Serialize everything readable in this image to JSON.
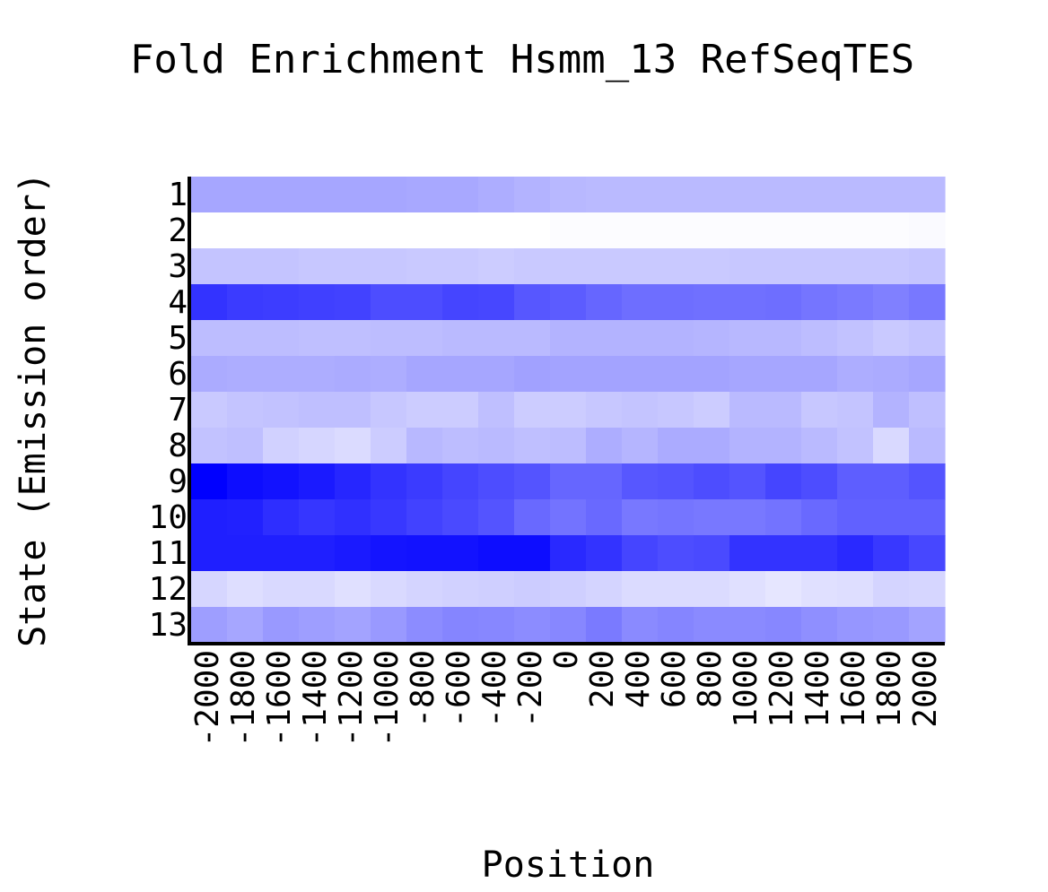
{
  "chart_data": {
    "type": "heatmap",
    "title": "Fold Enrichment Hsmm_13 RefSeqTES",
    "xlabel": "Position",
    "ylabel": "State (Emission order)",
    "x_categories": [
      "-2000",
      "-1800",
      "-1600",
      "-1400",
      "-1200",
      "-1000",
      "-800",
      "-600",
      "-400",
      "-200",
      "0",
      "200",
      "400",
      "600",
      "800",
      "1000",
      "1200",
      "1400",
      "1600",
      "1800",
      "2000"
    ],
    "y_categories": [
      "1",
      "2",
      "3",
      "4",
      "5",
      "6",
      "7",
      "8",
      "9",
      "10",
      "11",
      "12",
      "13"
    ],
    "color_low": "#ffffff",
    "color_high": "#0000ff",
    "values": [
      [
        0.35,
        0.35,
        0.35,
        0.35,
        0.35,
        0.35,
        0.34,
        0.34,
        0.32,
        0.3,
        0.28,
        0.27,
        0.27,
        0.27,
        0.27,
        0.27,
        0.27,
        0.27,
        0.27,
        0.27,
        0.27
      ],
      [
        0.0,
        0.0,
        0.0,
        0.0,
        0.0,
        0.0,
        0.0,
        0.0,
        0.0,
        0.0,
        0.01,
        0.01,
        0.01,
        0.01,
        0.01,
        0.01,
        0.01,
        0.01,
        0.01,
        0.01,
        0.02
      ],
      [
        0.23,
        0.23,
        0.23,
        0.22,
        0.22,
        0.22,
        0.21,
        0.21,
        0.2,
        0.21,
        0.21,
        0.21,
        0.21,
        0.21,
        0.21,
        0.22,
        0.22,
        0.22,
        0.22,
        0.22,
        0.23
      ],
      [
        0.8,
        0.77,
        0.76,
        0.75,
        0.74,
        0.7,
        0.7,
        0.73,
        0.72,
        0.66,
        0.64,
        0.6,
        0.57,
        0.57,
        0.56,
        0.56,
        0.57,
        0.54,
        0.52,
        0.5,
        0.53
      ],
      [
        0.26,
        0.26,
        0.26,
        0.25,
        0.25,
        0.26,
        0.26,
        0.27,
        0.27,
        0.27,
        0.3,
        0.3,
        0.3,
        0.3,
        0.29,
        0.28,
        0.28,
        0.26,
        0.24,
        0.21,
        0.23
      ],
      [
        0.33,
        0.32,
        0.32,
        0.32,
        0.33,
        0.32,
        0.35,
        0.35,
        0.35,
        0.37,
        0.36,
        0.36,
        0.36,
        0.36,
        0.36,
        0.35,
        0.35,
        0.35,
        0.32,
        0.33,
        0.35
      ],
      [
        0.21,
        0.23,
        0.24,
        0.25,
        0.25,
        0.22,
        0.2,
        0.2,
        0.25,
        0.2,
        0.2,
        0.22,
        0.23,
        0.22,
        0.2,
        0.27,
        0.27,
        0.22,
        0.23,
        0.3,
        0.25
      ],
      [
        0.24,
        0.25,
        0.18,
        0.16,
        0.14,
        0.2,
        0.28,
        0.26,
        0.27,
        0.25,
        0.26,
        0.32,
        0.29,
        0.33,
        0.33,
        0.3,
        0.3,
        0.27,
        0.24,
        0.15,
        0.27
      ],
      [
        1.0,
        0.95,
        0.93,
        0.9,
        0.85,
        0.8,
        0.77,
        0.73,
        0.7,
        0.67,
        0.6,
        0.6,
        0.66,
        0.67,
        0.7,
        0.67,
        0.73,
        0.7,
        0.63,
        0.63,
        0.67
      ],
      [
        0.88,
        0.87,
        0.82,
        0.79,
        0.81,
        0.78,
        0.74,
        0.71,
        0.67,
        0.59,
        0.55,
        0.59,
        0.53,
        0.54,
        0.53,
        0.53,
        0.55,
        0.59,
        0.62,
        0.62,
        0.62
      ],
      [
        0.88,
        0.88,
        0.88,
        0.88,
        0.9,
        0.92,
        0.93,
        0.93,
        0.95,
        0.95,
        0.84,
        0.8,
        0.73,
        0.7,
        0.71,
        0.8,
        0.8,
        0.8,
        0.84,
        0.78,
        0.72
      ],
      [
        0.16,
        0.13,
        0.15,
        0.15,
        0.12,
        0.15,
        0.17,
        0.18,
        0.19,
        0.2,
        0.19,
        0.17,
        0.14,
        0.14,
        0.14,
        0.12,
        0.1,
        0.12,
        0.13,
        0.17,
        0.16
      ],
      [
        0.38,
        0.35,
        0.4,
        0.38,
        0.36,
        0.4,
        0.45,
        0.48,
        0.47,
        0.45,
        0.47,
        0.52,
        0.46,
        0.48,
        0.46,
        0.46,
        0.47,
        0.44,
        0.41,
        0.4,
        0.36
      ]
    ]
  }
}
